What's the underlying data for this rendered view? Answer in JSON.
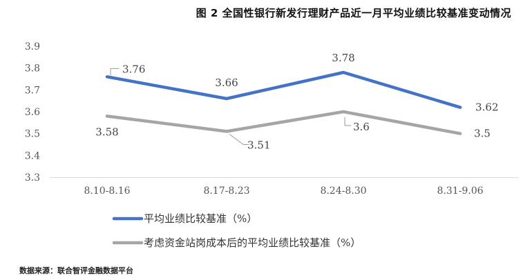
{
  "title": "图 2 全国性银行新发行理财产品近一月平均业绩比较基准变动情况",
  "source": "数据来源：联合智评金融数据平台",
  "chart_data": {
    "type": "line",
    "categories": [
      "8.10-8.16",
      "8.17-8.23",
      "8.24-8.30",
      "8.31-9.06"
    ],
    "ylim": [
      3.3,
      3.9
    ],
    "yticks": [
      "3.3",
      "3.4",
      "3.5",
      "3.6",
      "3.7",
      "3.8",
      "3.9"
    ],
    "grid": false,
    "legend": "bottom-left",
    "series": [
      {
        "name": "平均业绩比较基准（%）",
        "color": "#4472c4",
        "values": [
          3.76,
          3.66,
          3.78,
          3.62
        ],
        "labels": [
          "3.76",
          "3.66",
          "3.78",
          "3.62"
        ]
      },
      {
        "name": "考虑资金站岗成本后的平均业绩比较基准（%）",
        "color": "#a5a5a5",
        "values": [
          3.58,
          3.51,
          3.6,
          3.5
        ],
        "labels": [
          "3.58",
          "3.51",
          "3.6",
          "3.5"
        ]
      }
    ]
  }
}
